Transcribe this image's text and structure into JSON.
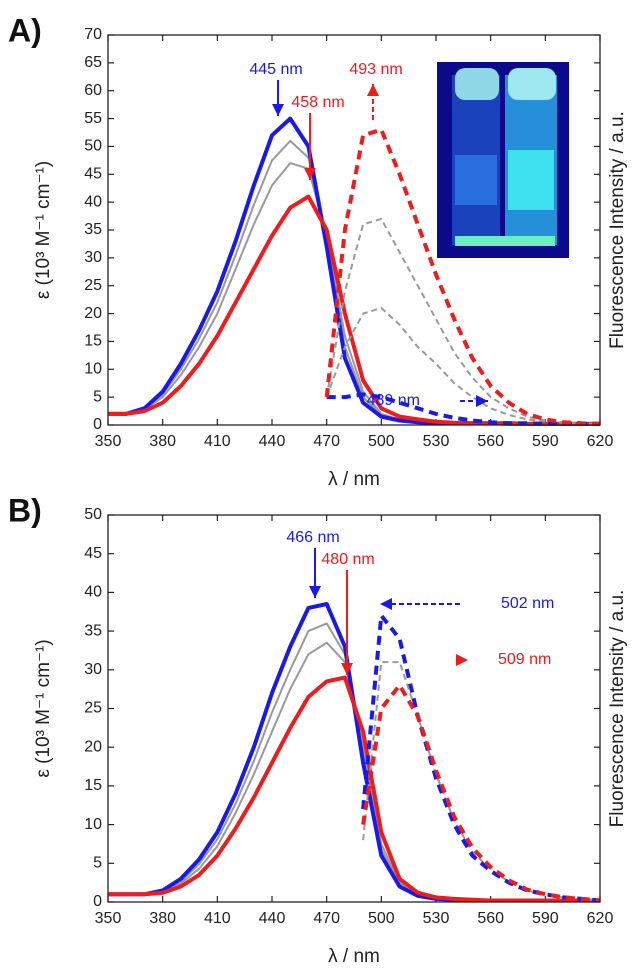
{
  "chart_data": [
    {
      "type": "line",
      "panel": "A)",
      "x_label": "λ / nm",
      "y_label": "ε (10³ M⁻¹ cm⁻¹)",
      "y2_label": "Fluorescence Intensity / a.u.",
      "xlim": [
        350,
        620
      ],
      "xticks": [
        350,
        380,
        410,
        440,
        470,
        500,
        530,
        560,
        590,
        620
      ],
      "ylim": [
        0,
        70
      ],
      "yticks": [
        0,
        5,
        10,
        15,
        20,
        25,
        30,
        35,
        40,
        45,
        50,
        55,
        60,
        65,
        70
      ],
      "annotations": [
        {
          "text": "445 nm",
          "color": "#1a1ae6"
        },
        {
          "text": "458 nm",
          "color": "#ee1c1c"
        },
        {
          "text": "493 nm",
          "color": "#ee1c1c"
        },
        {
          "text": "489 nm",
          "color": "#1a1ae6"
        }
      ],
      "inset_photo": true,
      "x": [
        350,
        360,
        370,
        380,
        390,
        400,
        410,
        420,
        430,
        440,
        450,
        460,
        470,
        480,
        490,
        500,
        510,
        520,
        530,
        540,
        550,
        560,
        570,
        580,
        590,
        600,
        610,
        620
      ],
      "series": [
        {
          "color": "#9a9a9a",
          "dashed": false,
          "values": [
            2,
            2,
            2.8,
            5,
            9,
            14,
            20,
            28,
            36,
            43,
            47,
            46,
            34,
            16,
            6,
            2,
            1,
            0.7,
            0.5,
            0.4,
            0.3,
            0.3,
            0.2,
            0.2,
            0.2,
            0.2,
            0.2,
            0.2
          ]
        },
        {
          "color": "#9a9a9a",
          "dashed": false,
          "values": [
            2,
            2,
            2.9,
            5.5,
            10,
            15.5,
            22,
            30.5,
            39.5,
            47.5,
            51,
            48,
            33,
            14,
            5,
            1.8,
            0.9,
            0.6,
            0.4,
            0.3,
            0.3,
            0.2,
            0.2,
            0.2,
            0.2,
            0.2,
            0.2,
            0.2
          ]
        },
        {
          "color": "#1a1ae6",
          "dashed": false,
          "values": [
            2,
            2,
            3,
            6,
            11,
            17,
            24,
            33,
            43,
            52,
            55,
            50,
            32,
            12,
            4,
            1.5,
            0.8,
            0.5,
            0.3,
            0.3,
            0.3,
            0.3,
            0.3,
            0.2,
            0.2,
            0.2,
            0.2,
            0.2
          ]
        },
        {
          "color": "#ee1c1c",
          "dashed": false,
          "values": [
            2,
            2,
            2.5,
            4,
            7,
            11,
            16,
            22,
            28,
            34,
            39,
            41,
            35,
            20,
            8,
            3,
            1.5,
            1,
            0.6,
            0.4,
            0.3,
            0.3,
            0.2,
            0.2,
            0.2,
            0.2,
            0.2,
            0.2
          ]
        },
        {
          "color": "#9a9a9a",
          "dashed": true,
          "values": [
            null,
            null,
            null,
            null,
            null,
            null,
            null,
            null,
            null,
            null,
            null,
            null,
            5,
            14,
            20,
            21,
            18,
            14,
            11,
            7.5,
            5,
            3,
            1.8,
            1,
            0.6,
            0.4,
            0.3,
            0.2
          ]
        },
        {
          "color": "#9a9a9a",
          "dashed": true,
          "values": [
            null,
            null,
            null,
            null,
            null,
            null,
            null,
            null,
            null,
            null,
            null,
            null,
            5,
            24,
            36,
            37,
            31,
            25,
            19,
            13,
            8.5,
            5,
            3,
            1.5,
            0.8,
            0.5,
            0.3,
            0.2
          ]
        },
        {
          "color": "#1a1ae6",
          "dashed": true,
          "values": [
            null,
            null,
            null,
            null,
            null,
            null,
            null,
            null,
            null,
            null,
            null,
            null,
            5,
            5,
            5.5,
            5,
            4,
            3,
            2,
            1.3,
            0.8,
            0.5,
            0.3,
            0.3,
            0.2,
            0.2,
            0.2,
            0.2
          ]
        },
        {
          "color": "#ee1c1c",
          "dashed": true,
          "values": [
            null,
            null,
            null,
            null,
            null,
            null,
            null,
            null,
            null,
            null,
            null,
            null,
            5,
            35,
            52,
            53,
            45,
            36,
            27,
            19,
            12,
            7,
            4,
            2,
            1,
            0.5,
            0.3,
            0.2
          ]
        }
      ]
    },
    {
      "type": "line",
      "panel": "B)",
      "x_label": "λ / nm",
      "y_label": "ε (10³ M⁻¹ cm⁻¹)",
      "y2_label": "Fluorescence Intensity / a.u.",
      "xlim": [
        350,
        620
      ],
      "xticks": [
        350,
        380,
        410,
        440,
        470,
        500,
        530,
        560,
        590,
        620
      ],
      "ylim": [
        0,
        50
      ],
      "yticks": [
        0,
        5,
        10,
        15,
        20,
        25,
        30,
        35,
        40,
        45,
        50
      ],
      "annotations": [
        {
          "text": "466 nm",
          "color": "#1a1ae6"
        },
        {
          "text": "480 nm",
          "color": "#ee1c1c"
        },
        {
          "text": "502 nm",
          "color": "#1a1ae6"
        },
        {
          "text": "509 nm",
          "color": "#ee1c1c"
        }
      ],
      "inset_photo": false,
      "x": [
        350,
        360,
        370,
        380,
        390,
        400,
        410,
        420,
        430,
        440,
        450,
        460,
        470,
        480,
        490,
        500,
        510,
        520,
        530,
        540,
        550,
        560,
        570,
        580,
        590,
        600,
        610,
        620
      ],
      "series": [
        {
          "color": "#9a9a9a",
          "dashed": false,
          "values": [
            1,
            1,
            1,
            1.3,
            2.4,
            4.3,
            7.2,
            11.5,
            16.5,
            22,
            27.5,
            32,
            33.5,
            31,
            20,
            7.5,
            2.5,
            1,
            0.5,
            0.3,
            0.3,
            0.2,
            0.2,
            0.2,
            0.2,
            0.2,
            0.2,
            0.2
          ]
        },
        {
          "color": "#9a9a9a",
          "dashed": false,
          "values": [
            1,
            1,
            1,
            1.4,
            2.7,
            4.9,
            8.1,
            12.7,
            18.2,
            24.5,
            30,
            35,
            36,
            32,
            19,
            6.8,
            2.2,
            0.9,
            0.5,
            0.3,
            0.3,
            0.2,
            0.2,
            0.2,
            0.2,
            0.2,
            0.2,
            0.2
          ]
        },
        {
          "color": "#1a1ae6",
          "dashed": false,
          "values": [
            1,
            1,
            1,
            1.5,
            3,
            5.5,
            9,
            14,
            20,
            27,
            33,
            38,
            38.5,
            33,
            18,
            6,
            2,
            0.8,
            0.4,
            0.3,
            0.2,
            0.2,
            0.2,
            0.2,
            0.2,
            0.2,
            0.2,
            0.2
          ]
        },
        {
          "color": "#ee1c1c",
          "dashed": false,
          "values": [
            1,
            1,
            1,
            1.2,
            2,
            3.5,
            6,
            9.5,
            13.5,
            18,
            22.5,
            26.5,
            28.5,
            29,
            22,
            9,
            3,
            1.2,
            0.6,
            0.4,
            0.3,
            0.2,
            0.2,
            0.2,
            0.2,
            0.2,
            0.2,
            0.2
          ]
        },
        {
          "color": "#9a9a9a",
          "dashed": true,
          "values": [
            null,
            null,
            null,
            null,
            null,
            null,
            null,
            null,
            null,
            null,
            null,
            null,
            null,
            null,
            8,
            31,
            31,
            24,
            16.5,
            10.5,
            6.5,
            4.2,
            2.6,
            1.5,
            1,
            0.6,
            0.4,
            0.2
          ]
        },
        {
          "color": "#1a1ae6",
          "dashed": true,
          "values": [
            null,
            null,
            null,
            null,
            null,
            null,
            null,
            null,
            null,
            null,
            null,
            null,
            null,
            null,
            12,
            37,
            34,
            24,
            16,
            10,
            6,
            4,
            2.5,
            1.5,
            1,
            0.6,
            0.4,
            0.2
          ]
        },
        {
          "color": "#ee1c1c",
          "dashed": true,
          "values": [
            null,
            null,
            null,
            null,
            null,
            null,
            null,
            null,
            null,
            null,
            null,
            null,
            null,
            null,
            10,
            25,
            28,
            24,
            17,
            11,
            7,
            4.5,
            2.8,
            1.6,
            1,
            0.6,
            0.4,
            0.2
          ]
        }
      ]
    }
  ]
}
